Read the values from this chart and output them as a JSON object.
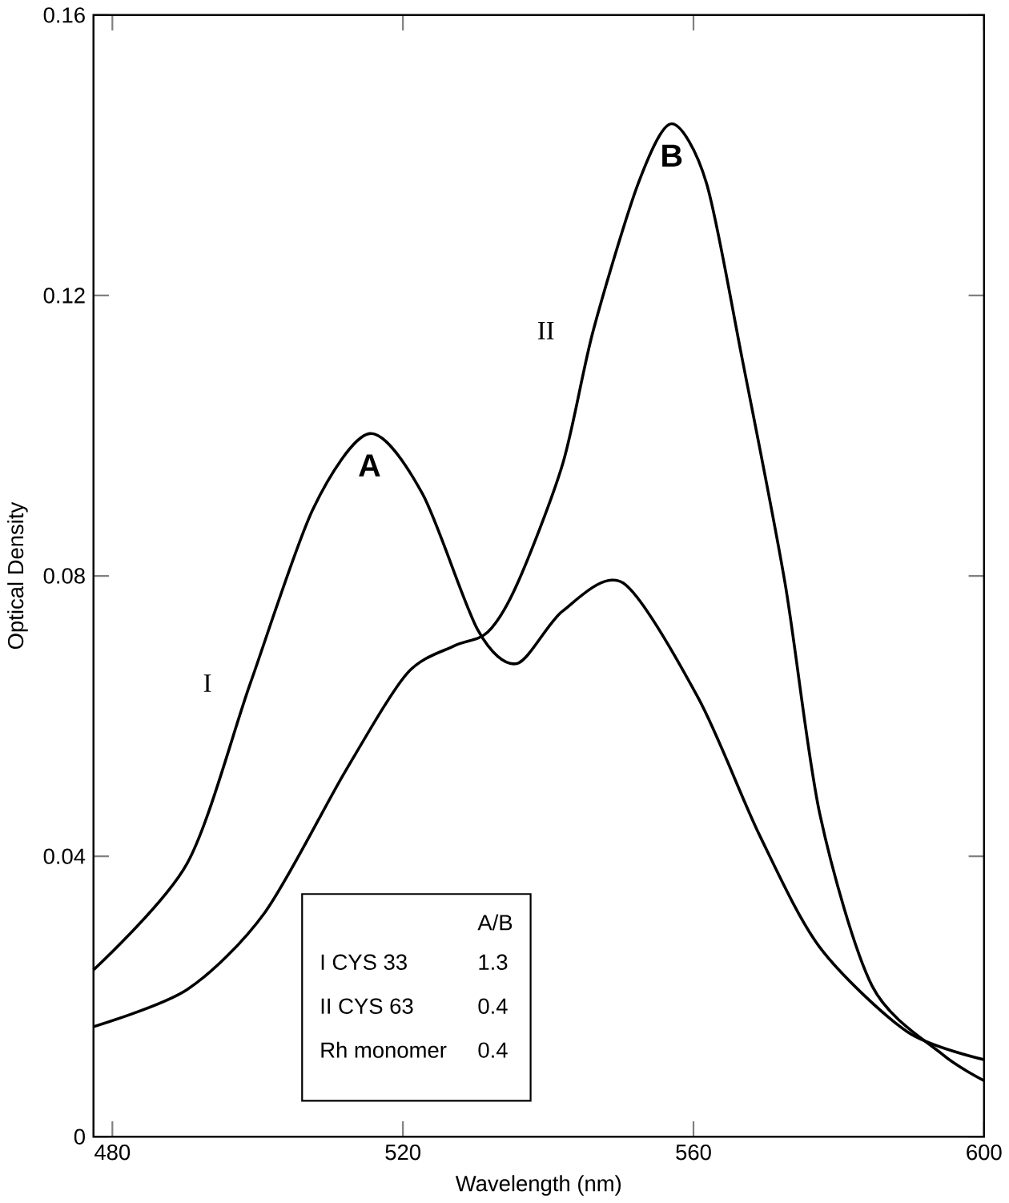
{
  "chart_data": {
    "type": "line",
    "xlabel": "Wavelength (nm)",
    "ylabel": "Optical Density",
    "xlim": [
      477.4,
      600
    ],
    "ylim": [
      0,
      0.16
    ],
    "xticks": [
      480,
      520,
      560,
      600
    ],
    "yticks": [
      0,
      0.04,
      0.08,
      0.12,
      0.16
    ],
    "grid": false,
    "legend": false,
    "marker": "none",
    "line_style": "solid",
    "series": [
      {
        "name": "I",
        "color": "#000000",
        "x": [
          477.4,
          490.3,
          499,
          507.6,
          515.4,
          522.7,
          530.3,
          535.7,
          542,
          550.3,
          560.7,
          569.1,
          577.4,
          589.4,
          600
        ],
        "values": [
          0.0238,
          0.039,
          0.0647,
          0.0895,
          0.1003,
          0.0917,
          0.0723,
          0.0675,
          0.075,
          0.079,
          0.0625,
          0.043,
          0.027,
          0.015,
          0.011
        ]
      },
      {
        "name": "II",
        "color": "#000000",
        "x": [
          477.4,
          490.3,
          501,
          512,
          520.5,
          527,
          531.7,
          535.8,
          542,
          546.2,
          552.4,
          557,
          561.8,
          566.7,
          572.6,
          577.4,
          584.6,
          594.2,
          600
        ],
        "values": [
          0.0157,
          0.021,
          0.032,
          0.052,
          0.066,
          0.07,
          0.072,
          0.079,
          0.096,
          0.115,
          0.136,
          0.1445,
          0.136,
          0.111,
          0.079,
          0.046,
          0.0215,
          0.0118,
          0.008
        ]
      }
    ],
    "annotations": [
      {
        "text": "A",
        "x": 515.4,
        "y": 0.1003
      },
      {
        "text": "B",
        "x": 557,
        "y": 0.1445
      },
      "A/B",
      "I CYS 33",
      "1.3",
      "II CYS 63",
      "0.4",
      "Rh monomer",
      "0.4"
    ]
  }
}
